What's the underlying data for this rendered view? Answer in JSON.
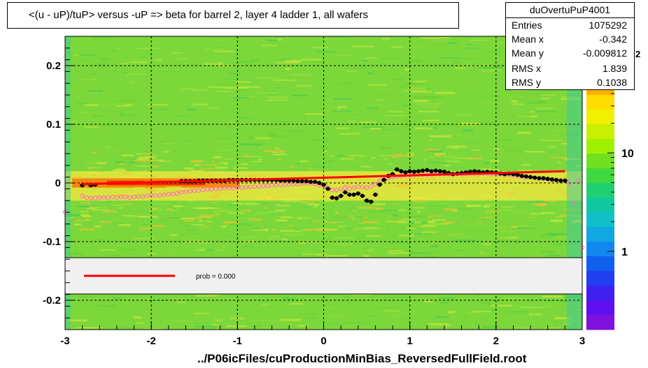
{
  "title": "<(u - uP)/tuP> versus  -uP => beta for barrel 2, layer 4 ladder 1, all wafers",
  "stats": {
    "name": "duOvertuPuP4001",
    "rows": [
      {
        "key": "Entries",
        "value": "1075292"
      },
      {
        "key": "Mean x",
        "value": "-0.342"
      },
      {
        "key": "Mean y",
        "value": "-0.009812"
      },
      {
        "key": "RMS x",
        "value": "1.839"
      },
      {
        "key": "RMS y",
        "value": "0.1038"
      }
    ]
  },
  "legend": {
    "label": "prob = 0.000"
  },
  "footer": "../P06icFiles/cuProductionMinBias_ReversedFullField.root",
  "colors": {
    "fit": "#ff0000",
    "profile_black": "#000000",
    "profile_pink": "#ff66cc"
  },
  "chart_data": {
    "type": "heatmap",
    "xlim": [
      -3,
      3
    ],
    "ylim": [
      -0.25,
      0.25
    ],
    "x_ticks": [
      {
        "v": -3,
        "label": "-3"
      },
      {
        "v": -2,
        "label": "-2"
      },
      {
        "v": -1,
        "label": "-1"
      },
      {
        "v": 0,
        "label": "0"
      },
      {
        "v": 1,
        "label": "1"
      },
      {
        "v": 2,
        "label": "2"
      },
      {
        "v": 3,
        "label": "3"
      }
    ],
    "y_ticks": [
      {
        "v": 0.2,
        "label": "0.2"
      },
      {
        "v": 0.1,
        "label": "0.1"
      },
      {
        "v": 0,
        "label": "0"
      },
      {
        "v": -0.1,
        "label": "-0.1"
      },
      {
        "v": -0.2,
        "label": "-0.2"
      }
    ],
    "grid": true,
    "color_scale": {
      "log": true,
      "ticks": [
        {
          "v": 1,
          "label": "1"
        },
        {
          "v": 10,
          "label": "10"
        }
      ],
      "exponent_label": "2"
    },
    "fit_line": {
      "x": [
        -2.8,
        2.8
      ],
      "y": [
        -0.002,
        0.02
      ]
    },
    "profile_black": {
      "x": [
        -2.8,
        -2.7,
        -2.65,
        -1.65,
        -1.6,
        -1.55,
        -1.5,
        -1.45,
        -1.4,
        -1.35,
        -1.3,
        -1.25,
        -1.2,
        -1.15,
        -1.1,
        -1.05,
        -1.0,
        -0.95,
        -0.9,
        -0.85,
        -0.8,
        -0.75,
        -0.7,
        -0.65,
        -0.6,
        -0.55,
        -0.5,
        -0.45,
        -0.4,
        -0.35,
        -0.3,
        -0.25,
        -0.2,
        -0.15,
        -0.1,
        -0.05,
        0.0,
        0.05,
        0.1,
        0.15,
        0.2,
        0.25,
        0.3,
        0.35,
        0.4,
        0.45,
        0.5,
        0.55,
        0.6,
        0.65,
        0.7,
        0.75,
        0.8,
        0.85,
        0.9,
        0.95,
        1.0,
        1.05,
        1.1,
        1.15,
        1.2,
        1.25,
        1.3,
        1.35,
        1.4,
        1.45,
        1.5,
        1.55,
        1.6,
        1.65,
        1.7,
        1.75,
        1.8,
        1.85,
        1.9,
        1.95,
        2.0,
        2.05,
        2.1,
        2.15,
        2.2,
        2.25,
        2.3,
        2.35,
        2.4,
        2.45,
        2.5,
        2.55,
        2.6,
        2.65,
        2.7,
        2.75,
        2.8
      ],
      "y": [
        -0.004,
        -0.004,
        -0.003,
        0.003,
        0.003,
        0.003,
        0.003,
        0.004,
        0.004,
        0.004,
        0.004,
        0.004,
        0.004,
        0.004,
        0.005,
        0.005,
        0.005,
        0.005,
        0.005,
        0.005,
        0.005,
        0.005,
        0.005,
        0.005,
        0.005,
        0.005,
        0.004,
        0.004,
        0.004,
        0.004,
        0.003,
        0.003,
        0.003,
        0.002,
        0.002,
        0.0,
        -0.003,
        -0.01,
        -0.025,
        -0.026,
        -0.022,
        -0.016,
        -0.02,
        -0.02,
        -0.018,
        -0.022,
        -0.03,
        -0.032,
        -0.02,
        -0.003,
        0.005,
        0.012,
        0.015,
        0.023,
        0.02,
        0.018,
        0.02,
        0.019,
        0.02,
        0.021,
        0.022,
        0.02,
        0.021,
        0.02,
        0.019,
        0.017,
        0.015,
        0.016,
        0.017,
        0.018,
        0.019,
        0.02,
        0.019,
        0.018,
        0.019,
        0.018,
        0.018,
        0.016,
        0.015,
        0.016,
        0.015,
        0.014,
        0.012,
        0.011,
        0.01,
        0.009,
        0.008,
        0.008,
        0.007,
        0.006,
        0.005,
        0.004,
        0.004
      ]
    },
    "profile_pink": {
      "x": [
        -3.0,
        -2.8,
        -2.75,
        -2.7,
        -2.65,
        -2.6,
        -2.55,
        -2.5,
        -2.45,
        -2.4,
        -2.35,
        -2.3,
        -2.25,
        -2.2,
        -2.15,
        -2.1,
        -2.05,
        -2.0,
        -1.95,
        -1.9,
        -1.85,
        -1.8,
        -1.75,
        -1.7,
        -1.65,
        -1.6,
        -1.55,
        -1.5,
        -1.45,
        -1.4,
        -1.35,
        -1.3,
        -1.25,
        -1.2,
        -1.15,
        -1.1,
        -1.05,
        -1.0,
        -0.95,
        -0.9,
        -0.85,
        -0.8,
        -0.75,
        -0.7,
        -0.65,
        -0.6,
        -0.55,
        -0.5,
        -0.45,
        -0.4,
        -0.35,
        -0.3,
        -0.25,
        -0.2,
        -0.15,
        -0.1,
        -0.05,
        0.0,
        0.05,
        0.1,
        0.15,
        0.2,
        0.25,
        0.3,
        0.35,
        0.4,
        0.45,
        0.5,
        0.55,
        0.6,
        0.65,
        0.7,
        0.75,
        0.8,
        0.85,
        0.9,
        0.95,
        1.0,
        1.05,
        1.1,
        1.15,
        1.2,
        1.25,
        1.3,
        1.35,
        1.4,
        1.45,
        1.5,
        1.55,
        1.6,
        1.65,
        1.7,
        1.75,
        1.8,
        1.85,
        1.9,
        1.95,
        2.0,
        2.05,
        2.1,
        2.15,
        2.2,
        2.25,
        2.3,
        2.35,
        2.4,
        2.45,
        2.5,
        2.55,
        2.6,
        2.65,
        2.7,
        2.75,
        2.8,
        2.85,
        2.9,
        2.95,
        3.0
      ],
      "y": [
        -0.05,
        -0.022,
        -0.025,
        -0.026,
        -0.026,
        -0.025,
        -0.025,
        -0.025,
        -0.024,
        -0.025,
        -0.024,
        -0.024,
        -0.025,
        -0.024,
        -0.023,
        -0.023,
        -0.022,
        -0.021,
        -0.022,
        -0.021,
        -0.02,
        -0.019,
        -0.019,
        -0.018,
        -0.016,
        -0.015,
        -0.014,
        -0.013,
        -0.013,
        -0.012,
        -0.011,
        -0.011,
        -0.01,
        -0.01,
        -0.009,
        -0.009,
        -0.009,
        -0.008,
        -0.008,
        -0.007,
        -0.007,
        -0.006,
        -0.006,
        -0.005,
        -0.005,
        -0.004,
        -0.004,
        -0.003,
        -0.003,
        -0.002,
        -0.002,
        -0.002,
        -0.001,
        -0.001,
        -0.001,
        -0.002,
        -0.004,
        -0.005,
        -0.008,
        -0.012,
        -0.012,
        -0.01,
        -0.008,
        -0.01,
        -0.008,
        -0.006,
        -0.007,
        -0.008,
        -0.006,
        -0.002,
        0.003,
        0.006,
        0.008,
        0.01,
        0.011,
        0.012,
        0.013,
        0.013,
        0.013,
        0.014,
        0.014,
        0.014,
        0.014,
        0.015,
        0.015,
        0.015,
        0.015,
        0.015,
        0.015,
        0.015,
        0.015,
        0.016,
        0.016,
        0.016,
        0.016,
        0.016,
        0.015,
        0.015,
        0.015,
        0.014,
        0.014,
        0.013,
        0.012,
        0.011,
        0.01,
        0.01,
        0.009,
        0.008,
        0.007,
        0.006,
        0.005,
        0.005,
        0.004,
        0.004,
        0.0,
        -0.035,
        0.004,
        -0.11
      ]
    }
  }
}
